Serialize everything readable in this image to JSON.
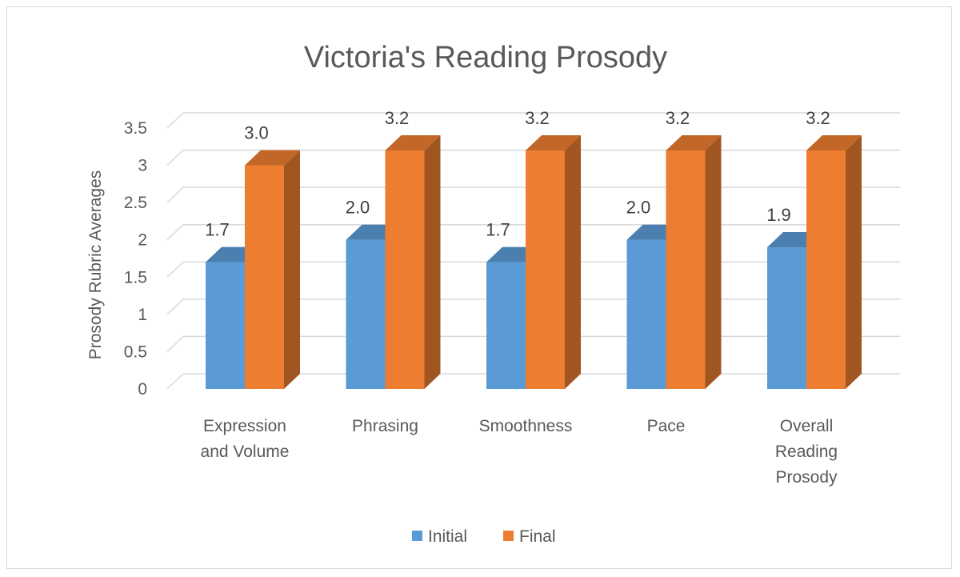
{
  "chart_data": {
    "type": "bar",
    "title": "Victoria's Reading Prosody",
    "ylabel": "Prosody Rubric Averages",
    "xlabel": "",
    "ylim": [
      0,
      3.5
    ],
    "yticks": [
      "0",
      "0.5",
      "1",
      "1.5",
      "2",
      "2.5",
      "3",
      "3.5"
    ],
    "grid": true,
    "legend_position": "bottom",
    "categories": [
      [
        "Expression",
        "and Volume"
      ],
      [
        "Phrasing"
      ],
      [
        "Smoothness"
      ],
      [
        "Pace"
      ],
      [
        "Overall",
        "Reading",
        "Prosody"
      ]
    ],
    "series": [
      {
        "name": "Initial",
        "color": "#5b9bd5",
        "values": [
          1.7,
          2.0,
          1.7,
          2.0,
          1.9
        ],
        "labels": [
          "1.7",
          "2.0",
          "1.7",
          "2.0",
          "1.9"
        ]
      },
      {
        "name": "Final",
        "color": "#ed7d31",
        "values": [
          3.0,
          3.2,
          3.2,
          3.2,
          3.2
        ],
        "labels": [
          "3.0",
          "3.2",
          "3.2",
          "3.2",
          "3.2"
        ]
      }
    ]
  }
}
